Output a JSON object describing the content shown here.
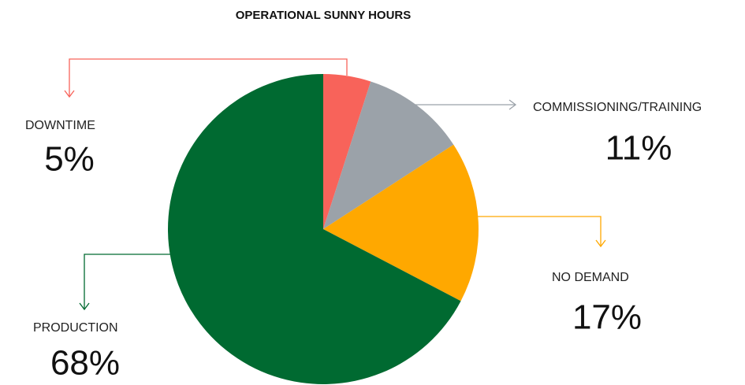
{
  "chart_data": {
    "type": "pie",
    "title": "OPERATIONAL SUNNY HOURS",
    "categories": [
      "DOWNTIME",
      "COMMISSIONING/TRAINING",
      "NO DEMAND",
      "PRODUCTION"
    ],
    "values": [
      5,
      11,
      17,
      68
    ],
    "value_labels": [
      "5%",
      "11%",
      "17%",
      "68%"
    ],
    "colors": [
      "#f8635a",
      "#9ba2a9",
      "#ffa800",
      "#006a31"
    ]
  }
}
